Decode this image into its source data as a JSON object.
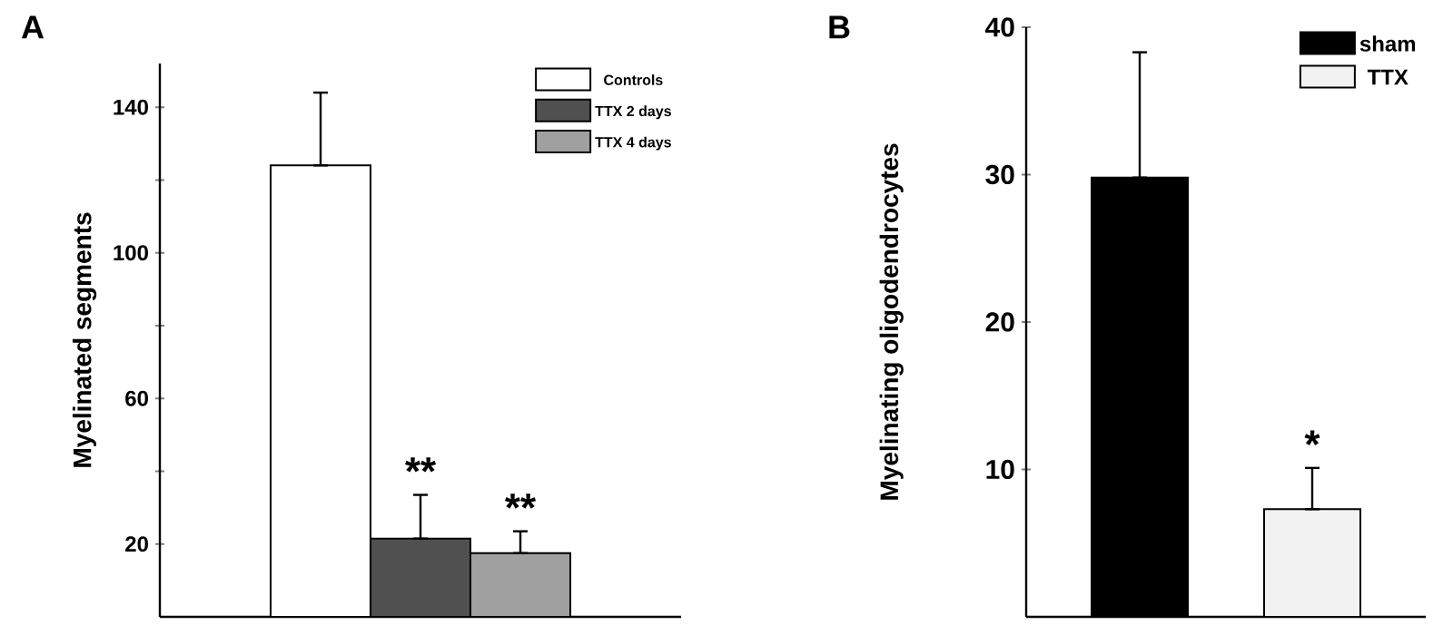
{
  "chart_data": [
    {
      "type": "bar",
      "title": "A",
      "ylabel": "Myelinated segments",
      "categories": [
        null
      ],
      "ylim": [
        0,
        152
      ],
      "yticks": [
        20,
        {
          "value": 40,
          "label": null
        },
        60,
        {
          "value": 80,
          "label": null
        },
        100,
        {
          "value": 120,
          "label": null
        },
        140
      ],
      "series": [
        {
          "name": "Controls",
          "color": "#ffffff",
          "values": [
            124
          ],
          "errors": [
            [
              124,
              144
            ]
          ]
        },
        {
          "name": "TTX 2 days",
          "color": "#505050",
          "values": [
            21.5
          ],
          "errors": [
            [
              21.5,
              33.5
            ]
          ]
        },
        {
          "name": "TTX 4 days",
          "color": "#a0a0a0",
          "values": [
            17.5
          ],
          "errors": [
            [
              17.5,
              23.5
            ]
          ]
        }
      ],
      "annotations": [
        "**",
        "**"
      ],
      "legend": "top right"
    },
    {
      "type": "bar",
      "title": "B",
      "ylabel": "Myelinating oligodendrocytes",
      "categories": [
        null
      ],
      "ylim": [
        0,
        40
      ],
      "yticks": [
        10,
        20,
        30,
        40
      ],
      "series": [
        {
          "name": "sham",
          "color": "#000000",
          "values": [
            29.8
          ],
          "errors": [
            [
              29.8,
              38.3
            ]
          ]
        },
        {
          "name": "TTX",
          "color": "#f2f2f2",
          "values": [
            7.3
          ],
          "errors": [
            [
              7.3,
              10.1
            ]
          ]
        }
      ],
      "annotations": [
        "*"
      ],
      "legend": "top right"
    }
  ]
}
